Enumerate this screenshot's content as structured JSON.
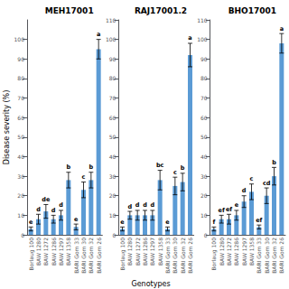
{
  "chart_data": [
    {
      "type": "bar",
      "title": "MEH17001",
      "categories": [
        "Borlaug 100",
        "BAW 1280",
        "BAW 1272",
        "BAW 1286",
        "BAW 1297",
        "BAW 1358",
        "BARI Gom 33",
        "BARI Gom 30",
        "BARI Gom 32",
        "BARI Gom 26"
      ],
      "values": [
        3,
        8,
        12,
        8,
        10,
        28,
        4,
        23,
        28,
        95
      ],
      "errors": [
        1.0,
        2.5,
        3.5,
        2.0,
        2.5,
        4.0,
        1.5,
        4.0,
        4.0,
        5.0
      ],
      "annotations": [
        "e",
        "d",
        "de",
        "d",
        "d",
        "b",
        "e",
        "c",
        "b",
        "a"
      ],
      "color": "#5b9bd5",
      "ylim": [
        0,
        110
      ],
      "yticks": [
        0,
        10,
        20,
        30,
        40,
        50,
        60,
        70,
        80,
        90,
        100
      ],
      "grid": false
    },
    {
      "type": "bar",
      "title": "RAJ17001.2",
      "categories": [
        "Borlaug 100",
        "BAW 1280",
        "BAW 1272",
        "BAW 1286",
        "BAW 1297",
        "BAW 1358",
        "BARI Gom 33",
        "BARI Gom 30",
        "BARI Gom 32",
        "BARI Gom 26"
      ],
      "values": [
        3,
        10,
        10,
        10,
        10,
        28,
        3,
        25,
        27,
        92
      ],
      "errors": [
        1.0,
        2.0,
        2.5,
        2.5,
        2.5,
        5.0,
        1.0,
        4.5,
        4.5,
        6.0
      ],
      "annotations": [
        "e",
        "d",
        "d",
        "d",
        "d",
        "bc",
        "e",
        "c",
        "b",
        "a"
      ],
      "color": "#5b9bd5",
      "ylabel": "Disease severity (%)",
      "ylim": [
        0,
        110
      ],
      "yticks": [
        0,
        10,
        20,
        30,
        40,
        50,
        60,
        70,
        80,
        90,
        100,
        110
      ],
      "grid": false
    },
    {
      "type": "bar",
      "title": "BHO17001",
      "categories": [
        "Borlaug 100",
        "BAW 1280",
        "BAW 1272",
        "BAW 1286",
        "BAW 1297",
        "BAW 1358",
        "BARI Gom 33",
        "BARI Gom 30",
        "BARI Gom 32",
        "BARI Gom 26"
      ],
      "values": [
        3,
        8,
        8,
        10,
        17,
        22,
        4,
        20,
        30,
        98
      ],
      "errors": [
        1.0,
        2.0,
        2.5,
        2.5,
        3.0,
        4.0,
        1.0,
        4.0,
        4.5,
        5.0
      ],
      "annotations": [
        "f",
        "ef",
        "ef",
        "e",
        "d",
        "c",
        "ef",
        "cd",
        "b",
        "a"
      ],
      "color": "#5b9bd5",
      "xlabel": "Genotypes",
      "ylim": [
        0,
        110
      ],
      "yticks": [
        0,
        10,
        20,
        30,
        40,
        50,
        60,
        70,
        80,
        90,
        100,
        110
      ],
      "grid": false
    }
  ]
}
